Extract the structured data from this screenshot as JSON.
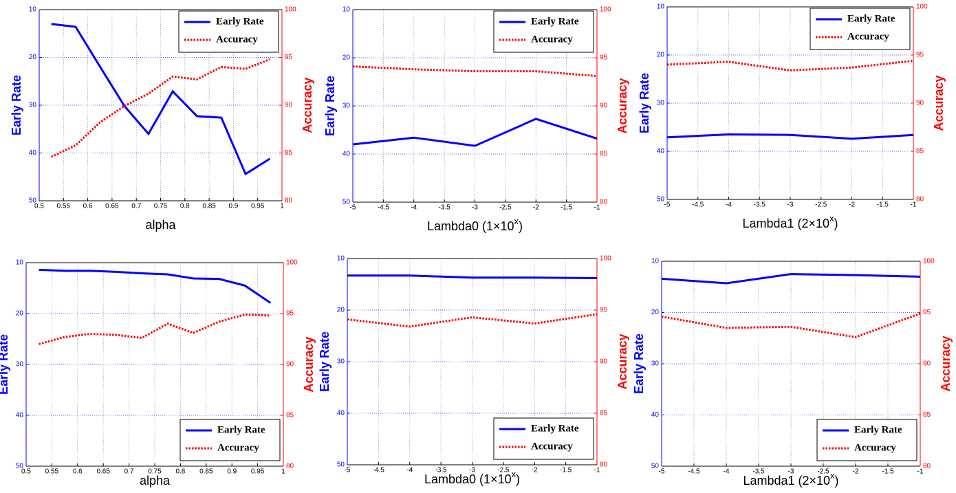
{
  "chart_data": [
    {
      "type": "line",
      "xlabel_parts": [
        "alpha"
      ],
      "ylabel": "Early Rate",
      "y2label": "Accuracy",
      "x": [
        0.525,
        0.575,
        0.625,
        0.675,
        0.725,
        0.775,
        0.825,
        0.875,
        0.925,
        0.975
      ],
      "series": [
        {
          "name": "Early Rate",
          "color": "#0000ff",
          "dash": "solid",
          "values": [
            13.0,
            13.6,
            21.9,
            30.1,
            36.0,
            27.1,
            32.3,
            32.6,
            44.4,
            41.2
          ]
        },
        {
          "name": "Accuracy",
          "color": "#ff0000",
          "dash": "dotted",
          "axis": "y2",
          "values": [
            84.6,
            85.8,
            88.2,
            89.9,
            91.2,
            93.0,
            92.7,
            94.0,
            93.8,
            94.8
          ]
        }
      ],
      "xlim": [
        0.5,
        1
      ],
      "xticks": [
        0.5,
        0.55,
        0.6,
        0.65,
        0.7,
        0.75,
        0.8,
        0.85,
        0.9,
        0.95,
        1
      ],
      "ylim": [
        50,
        10
      ],
      "yticks": [
        10,
        20,
        30,
        40,
        50
      ],
      "y2lim": [
        80,
        100
      ],
      "y2ticks": [
        80,
        85,
        90,
        95,
        100
      ],
      "grid": true,
      "legend": "upper right"
    },
    {
      "type": "line",
      "xlabel_parts": [
        "Lambda0 (1×10",
        "x",
        ")"
      ],
      "ylabel": "Early Rate",
      "y2label": "Accuracy",
      "x": [
        -5,
        -4,
        -3,
        -2,
        -1
      ],
      "series": [
        {
          "name": "Early Rate",
          "color": "#0000ff",
          "dash": "solid",
          "values": [
            38.0,
            36.6,
            38.3,
            32.7,
            36.8
          ]
        },
        {
          "name": "Accuracy",
          "color": "#ff0000",
          "dash": "dotted",
          "axis": "y2",
          "values": [
            94.1,
            93.8,
            93.6,
            93.6,
            93.1
          ]
        }
      ],
      "xlim": [
        -5,
        -1
      ],
      "xticks": [
        -5,
        -4.5,
        -4,
        -3.5,
        -3,
        -2.5,
        -2,
        -1.5,
        -1
      ],
      "ylim": [
        50,
        10
      ],
      "yticks": [
        10,
        20,
        30,
        40,
        50
      ],
      "y2lim": [
        80,
        100
      ],
      "y2ticks": [
        80,
        85,
        90,
        95,
        100
      ],
      "grid": true,
      "legend": "upper right"
    },
    {
      "type": "line",
      "xlabel_parts": [
        "Lambda1 (2×10",
        "x",
        ")"
      ],
      "ylabel": "Early Rate",
      "y2label": "Accuracy",
      "x": [
        -5,
        -4,
        -3,
        -2,
        -1
      ],
      "series": [
        {
          "name": "Early Rate",
          "color": "#0000ff",
          "dash": "solid",
          "values": [
            37.1,
            36.5,
            36.6,
            37.4,
            36.6
          ]
        },
        {
          "name": "Accuracy",
          "color": "#ff0000",
          "dash": "dotted",
          "axis": "y2",
          "values": [
            94.0,
            94.3,
            93.4,
            93.7,
            94.4
          ]
        }
      ],
      "xlim": [
        -5,
        -1
      ],
      "xticks": [
        -5,
        -4.5,
        -4,
        -3.5,
        -3,
        -2.5,
        -2,
        -1.5,
        -1
      ],
      "ylim": [
        50,
        10
      ],
      "yticks": [
        10,
        20,
        30,
        40,
        50
      ],
      "y2lim": [
        80,
        100
      ],
      "y2ticks": [
        80,
        85,
        90,
        95,
        100
      ],
      "grid": true,
      "legend": "upper right"
    },
    {
      "type": "line",
      "xlabel_parts": [
        "alpha"
      ],
      "ylabel": "Early Rate",
      "y2label": "Accuracy",
      "x": [
        0.525,
        0.575,
        0.625,
        0.675,
        0.725,
        0.775,
        0.825,
        0.875,
        0.925,
        0.975
      ],
      "series": [
        {
          "name": "Early Rate",
          "color": "#0000ff",
          "dash": "solid",
          "values": [
            11.4,
            11.6,
            11.6,
            11.8,
            12.1,
            12.3,
            13.1,
            13.2,
            14.5,
            17.9
          ]
        },
        {
          "name": "Accuracy",
          "color": "#ff0000",
          "dash": "dotted",
          "axis": "y2",
          "values": [
            92.0,
            92.7,
            93.0,
            92.9,
            92.6,
            94.0,
            93.1,
            94.2,
            94.9,
            94.8
          ]
        }
      ],
      "xlim": [
        0.5,
        1
      ],
      "xticks": [
        0.5,
        0.55,
        0.6,
        0.65,
        0.7,
        0.75,
        0.8,
        0.85,
        0.9,
        0.95,
        1
      ],
      "ylim": [
        50,
        10
      ],
      "yticks": [
        10,
        20,
        30,
        40,
        50
      ],
      "y2lim": [
        80,
        100
      ],
      "y2ticks": [
        80,
        85,
        90,
        95,
        100
      ],
      "grid": true,
      "legend": "lower right"
    },
    {
      "type": "line",
      "xlabel_parts": [
        "Lambda0 (1×10",
        "x",
        ")"
      ],
      "ylabel": "Early Rate",
      "y2label": "Accuracy",
      "x": [
        -5,
        -4,
        -3,
        -2,
        -1
      ],
      "series": [
        {
          "name": "Early Rate",
          "color": "#0000ff",
          "dash": "solid",
          "values": [
            13.3,
            13.3,
            13.7,
            13.7,
            13.8
          ]
        },
        {
          "name": "Accuracy",
          "color": "#ff0000",
          "dash": "dotted",
          "axis": "y2",
          "values": [
            94.1,
            93.4,
            94.3,
            93.7,
            94.6
          ]
        }
      ],
      "xlim": [
        -5,
        -1
      ],
      "xticks": [
        -5,
        -4.5,
        -4,
        -3.5,
        -3,
        -2.5,
        -2,
        -1.5,
        -1
      ],
      "ylim": [
        50,
        10
      ],
      "yticks": [
        10,
        20,
        30,
        40,
        50
      ],
      "y2lim": [
        80,
        100
      ],
      "y2ticks": [
        80,
        85,
        90,
        95,
        100
      ],
      "grid": true,
      "legend": "lower right"
    },
    {
      "type": "line",
      "xlabel_parts": [
        "Lambda1 (2×10",
        "x",
        ")"
      ],
      "ylabel": "Early Rate",
      "y2label": "Accuracy",
      "x": [
        -5,
        -4,
        -3,
        -2,
        -1
      ],
      "series": [
        {
          "name": "Early Rate",
          "color": "#0000ff",
          "dash": "solid",
          "values": [
            13.4,
            14.3,
            12.5,
            12.7,
            13.0
          ]
        },
        {
          "name": "Accuracy",
          "color": "#ff0000",
          "dash": "dotted",
          "axis": "y2",
          "values": [
            94.6,
            93.5,
            93.6,
            92.6,
            94.9
          ]
        }
      ],
      "xlim": [
        -5,
        -1
      ],
      "xticks": [
        -5,
        -4.5,
        -4,
        -3.5,
        -3,
        -2.5,
        -2,
        -1.5,
        -1
      ],
      "ylim": [
        50,
        10
      ],
      "yticks": [
        10,
        20,
        30,
        40,
        50
      ],
      "y2lim": [
        80,
        100
      ],
      "y2ticks": [
        80,
        85,
        90,
        95,
        100
      ],
      "grid": true,
      "legend": "lower right"
    }
  ]
}
